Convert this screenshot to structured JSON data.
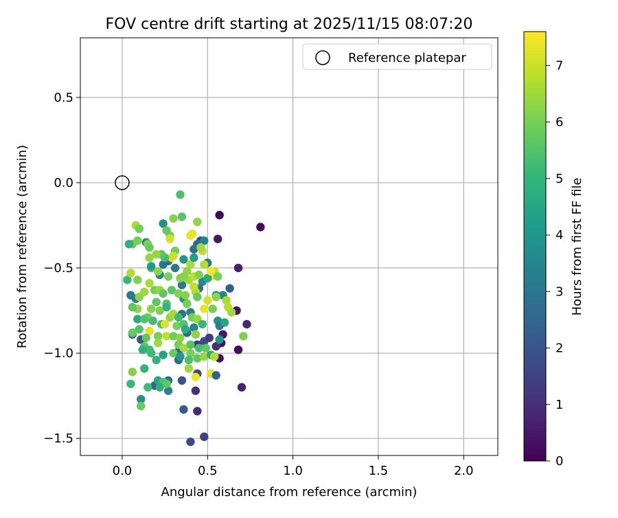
{
  "chart_data": {
    "type": "scatter",
    "title": "FOV centre drift starting at 2025/11/15 08:07:20",
    "xlabel": "Angular distance from reference (arcmin)",
    "ylabel": "Rotation from reference (arcmin)",
    "xlim": [
      -0.245,
      2.2
    ],
    "ylim": [
      -1.6,
      0.85
    ],
    "xticks": [
      0.0,
      0.5,
      1.0,
      1.5,
      2.0
    ],
    "xtick_labels": [
      "0.0",
      "0.5",
      "1.0",
      "1.5",
      "2.0"
    ],
    "yticks": [
      -1.5,
      -1.0,
      -0.5,
      0.0,
      0.5
    ],
    "ytick_labels": [
      "−1.5",
      "−1.0",
      "−0.5",
      "0.0",
      "0.5"
    ],
    "grid": true,
    "legend": {
      "position": "top-right",
      "entries": [
        "Reference platepar"
      ]
    },
    "reference_point": {
      "x": 0.0,
      "y": 0.0,
      "label": "Reference platepar"
    },
    "colorbar": {
      "label": "Hours from first FF file",
      "colormap": "viridis",
      "min": 0,
      "max": 7.6,
      "ticks": [
        0,
        1,
        2,
        3,
        4,
        5,
        6,
        7
      ],
      "tick_labels": [
        "0",
        "1",
        "2",
        "3",
        "4",
        "5",
        "6",
        "7"
      ]
    },
    "points_columns": [
      "x_arcmin",
      "y_arcmin",
      "hours"
    ],
    "points": [
      [
        0.57,
        -0.19,
        0.1
      ],
      [
        0.81,
        -0.26,
        0.2
      ],
      [
        0.56,
        -0.33,
        0.5
      ],
      [
        0.68,
        -0.5,
        0.6
      ],
      [
        0.67,
        -0.75,
        0.4
      ],
      [
        0.73,
        -0.83,
        0.8
      ],
      [
        0.59,
        -0.89,
        0.5
      ],
      [
        0.58,
        -0.94,
        0.3
      ],
      [
        0.68,
        -0.98,
        0.2
      ],
      [
        0.57,
        -1.03,
        0.4
      ],
      [
        0.7,
        -1.2,
        0.7
      ],
      [
        0.43,
        -1.22,
        1.0
      ],
      [
        0.44,
        -1.34,
        0.9
      ],
      [
        0.48,
        -1.49,
        1.4
      ],
      [
        0.4,
        -1.52,
        1.7
      ],
      [
        0.36,
        -1.33,
        2.2
      ],
      [
        0.35,
        -1.16,
        2.0
      ],
      [
        0.44,
        -1.12,
        1.6
      ],
      [
        0.48,
        -0.93,
        1.8
      ],
      [
        0.51,
        -0.91,
        1.3
      ],
      [
        0.44,
        -0.95,
        1.2
      ],
      [
        0.55,
        -0.96,
        1.1
      ],
      [
        0.46,
        -0.34,
        1.5
      ],
      [
        0.44,
        -0.36,
        2.6
      ],
      [
        0.48,
        -0.34,
        3.4
      ],
      [
        0.42,
        -0.39,
        2.8
      ],
      [
        0.5,
        -0.47,
        3.1
      ],
      [
        0.47,
        -0.58,
        3.7
      ],
      [
        0.35,
        -0.6,
        3.2
      ],
      [
        0.45,
        -0.62,
        3.0
      ],
      [
        0.4,
        -0.76,
        3.3
      ],
      [
        0.35,
        -0.77,
        2.8
      ],
      [
        0.42,
        -0.85,
        3.6
      ],
      [
        0.38,
        -0.88,
        2.6
      ],
      [
        0.33,
        -0.99,
        2.4
      ],
      [
        0.33,
        -1.04,
        2.5
      ],
      [
        0.27,
        -1.16,
        2.9
      ],
      [
        0.27,
        -1.22,
        3.5
      ],
      [
        0.19,
        -1.19,
        2.3
      ],
      [
        0.11,
        -1.27,
        3.9
      ],
      [
        0.11,
        -0.92,
        2.1
      ],
      [
        0.06,
        -0.89,
        2.5
      ],
      [
        0.08,
        -0.68,
        3.3
      ],
      [
        0.05,
        -0.66,
        3.1
      ],
      [
        0.24,
        -0.48,
        3.0
      ],
      [
        0.22,
        -0.54,
        3.4
      ],
      [
        0.27,
        -0.46,
        2.7
      ],
      [
        0.31,
        -0.5,
        3.1
      ],
      [
        0.24,
        -0.24,
        3.8
      ],
      [
        0.14,
        -0.35,
        3.6
      ],
      [
        0.63,
        -0.62,
        2.3
      ],
      [
        0.59,
        -0.66,
        3.5
      ],
      [
        0.55,
        -0.66,
        3.8
      ],
      [
        0.56,
        -0.81,
        3.9
      ],
      [
        0.57,
        -0.84,
        3.2
      ],
      [
        0.57,
        -0.92,
        4.0
      ],
      [
        0.36,
        -0.68,
        4.0
      ],
      [
        0.34,
        -0.07,
        5.4
      ],
      [
        0.35,
        -0.2,
        5.6
      ],
      [
        0.3,
        -0.21,
        6.2
      ],
      [
        0.28,
        -0.31,
        6.1
      ],
      [
        0.31,
        -0.4,
        5.9
      ],
      [
        0.26,
        -0.28,
        5.8
      ],
      [
        0.08,
        -0.25,
        6.6
      ],
      [
        0.1,
        -0.27,
        5.9
      ],
      [
        0.06,
        -0.36,
        5.7
      ],
      [
        0.04,
        -0.36,
        4.9
      ],
      [
        0.09,
        -0.34,
        6.0
      ],
      [
        0.15,
        -0.36,
        6.1
      ],
      [
        0.16,
        -0.44,
        6.4
      ],
      [
        0.17,
        -0.5,
        5.4
      ],
      [
        0.21,
        -0.52,
        6.3
      ],
      [
        0.27,
        -0.55,
        6.0
      ],
      [
        0.34,
        -0.56,
        6.2
      ],
      [
        0.39,
        -0.57,
        6.5
      ],
      [
        0.42,
        -0.55,
        6.8
      ],
      [
        0.45,
        -0.54,
        6.1
      ],
      [
        0.48,
        -0.48,
        6.7
      ],
      [
        0.52,
        -0.55,
        7.4
      ],
      [
        0.54,
        -0.52,
        6.9
      ],
      [
        0.56,
        -0.55,
        6.0
      ],
      [
        0.47,
        -0.4,
        6.9
      ],
      [
        0.44,
        -0.23,
        6.3
      ],
      [
        0.41,
        -0.3,
        7.2
      ],
      [
        0.4,
        -0.48,
        6.6
      ],
      [
        0.03,
        -0.57,
        5.1
      ],
      [
        0.05,
        -0.53,
        6.7
      ],
      [
        0.09,
        -0.57,
        6.1
      ],
      [
        0.16,
        -0.59,
        6.6
      ],
      [
        0.19,
        -0.63,
        6.0
      ],
      [
        0.22,
        -0.63,
        6.4
      ],
      [
        0.24,
        -0.65,
        5.7
      ],
      [
        0.29,
        -0.63,
        5.6
      ],
      [
        0.33,
        -0.65,
        6.1
      ],
      [
        0.37,
        -0.66,
        6.2
      ],
      [
        0.43,
        -0.64,
        6.6
      ],
      [
        0.44,
        -0.67,
        5.8
      ],
      [
        0.5,
        -0.69,
        7.1
      ],
      [
        0.55,
        -0.67,
        6.3
      ],
      [
        0.61,
        -0.69,
        6.6
      ],
      [
        0.62,
        -0.73,
        6.8
      ],
      [
        0.48,
        -0.74,
        7.4
      ],
      [
        0.38,
        -0.71,
        6.0
      ],
      [
        0.26,
        -0.71,
        5.5
      ],
      [
        0.22,
        -0.75,
        6.1
      ],
      [
        0.2,
        -0.7,
        5.7
      ],
      [
        0.17,
        -0.74,
        6.2
      ],
      [
        0.09,
        -0.74,
        6.4
      ],
      [
        0.06,
        -0.73,
        5.7
      ],
      [
        0.15,
        -0.79,
        5.9
      ],
      [
        0.18,
        -0.81,
        5.3
      ],
      [
        0.23,
        -0.83,
        5.4
      ],
      [
        0.25,
        -0.83,
        7.2
      ],
      [
        0.28,
        -0.79,
        6.4
      ],
      [
        0.32,
        -0.84,
        6.0
      ],
      [
        0.36,
        -0.83,
        5.5
      ],
      [
        0.41,
        -0.79,
        6.0
      ],
      [
        0.44,
        -0.8,
        6.4
      ],
      [
        0.16,
        -0.87,
        7.3
      ],
      [
        0.21,
        -0.9,
        6.0
      ],
      [
        0.26,
        -0.9,
        6.9
      ],
      [
        0.3,
        -0.9,
        5.9
      ],
      [
        0.34,
        -0.91,
        6.3
      ],
      [
        0.43,
        -0.89,
        6.3
      ],
      [
        0.06,
        -0.88,
        5.8
      ],
      [
        0.1,
        -0.86,
        5.5
      ],
      [
        0.14,
        -0.91,
        5.7
      ],
      [
        0.21,
        -0.94,
        6.5
      ],
      [
        0.33,
        -0.95,
        5.9
      ],
      [
        0.36,
        -0.97,
        6.6
      ],
      [
        0.4,
        -0.95,
        5.5
      ],
      [
        0.45,
        -0.97,
        5.3
      ],
      [
        0.49,
        -0.97,
        5.7
      ],
      [
        0.13,
        -0.96,
        5.6
      ],
      [
        0.16,
        -0.98,
        5.3
      ],
      [
        0.12,
        -0.98,
        4.9
      ],
      [
        0.17,
        -1.0,
        5.2
      ],
      [
        0.24,
        -1.01,
        4.4
      ],
      [
        0.3,
        -1.0,
        5.8
      ],
      [
        0.4,
        -1.0,
        6.0
      ],
      [
        0.44,
        -1.03,
        5.7
      ],
      [
        0.48,
        -1.02,
        6.4
      ],
      [
        0.52,
        -1.01,
        4.8
      ],
      [
        0.54,
        -1.02,
        6.7
      ],
      [
        0.34,
        -1.02,
        4.1
      ],
      [
        0.2,
        -1.04,
        5.0
      ],
      [
        0.39,
        -1.04,
        5.4
      ],
      [
        0.06,
        -1.11,
        6.2
      ],
      [
        0.13,
        -1.09,
        5.0
      ],
      [
        0.15,
        -1.2,
        5.2
      ],
      [
        0.21,
        -1.16,
        4.6
      ],
      [
        0.24,
        -1.17,
        5.4
      ],
      [
        0.26,
        -1.18,
        5.7
      ],
      [
        0.22,
        -1.2,
        4.8
      ],
      [
        0.11,
        -1.31,
        5.8
      ],
      [
        0.05,
        -1.18,
        5.1
      ],
      [
        0.39,
        -1.09,
        6.5
      ],
      [
        0.43,
        -1.14,
        7.4
      ],
      [
        0.52,
        -1.12,
        7.3
      ],
      [
        0.55,
        -1.13,
        2.4
      ],
      [
        0.13,
        -0.64,
        6.5
      ],
      [
        0.29,
        -0.44,
        7.2
      ],
      [
        0.3,
        -0.43,
        7.0
      ],
      [
        0.36,
        -0.45,
        4.0
      ],
      [
        0.42,
        -0.44,
        4.3
      ],
      [
        0.5,
        -0.56,
        4.6
      ],
      [
        0.38,
        -0.52,
        6.3
      ],
      [
        0.36,
        -0.55,
        6.2
      ],
      [
        0.25,
        -0.44,
        5.3
      ],
      [
        0.23,
        -0.42,
        5.6
      ],
      [
        0.2,
        -0.42,
        6.4
      ],
      [
        0.17,
        -0.49,
        4.2
      ],
      [
        0.16,
        -0.38,
        5.8
      ],
      [
        0.1,
        -0.67,
        6.3
      ],
      [
        0.09,
        -0.8,
        4.7
      ],
      [
        0.13,
        -0.8,
        5.5
      ],
      [
        0.26,
        -0.73,
        5.0
      ],
      [
        0.3,
        -0.77,
        6.6
      ],
      [
        0.33,
        -0.79,
        5.2
      ],
      [
        0.37,
        -0.86,
        4.7
      ],
      [
        0.47,
        -0.83,
        5.1
      ],
      [
        0.53,
        -0.74,
        6.0
      ],
      [
        0.6,
        -0.82,
        4.5
      ],
      [
        0.64,
        -0.76,
        6.5
      ],
      [
        0.71,
        -0.9,
        6.1
      ],
      [
        0.28,
        -0.33,
        7.1
      ],
      [
        0.4,
        -0.31,
        7.4
      ],
      [
        0.46,
        -0.38,
        6.5
      ],
      [
        0.52,
        -0.52,
        7.5
      ],
      [
        0.42,
        -0.61,
        6.9
      ]
    ]
  }
}
